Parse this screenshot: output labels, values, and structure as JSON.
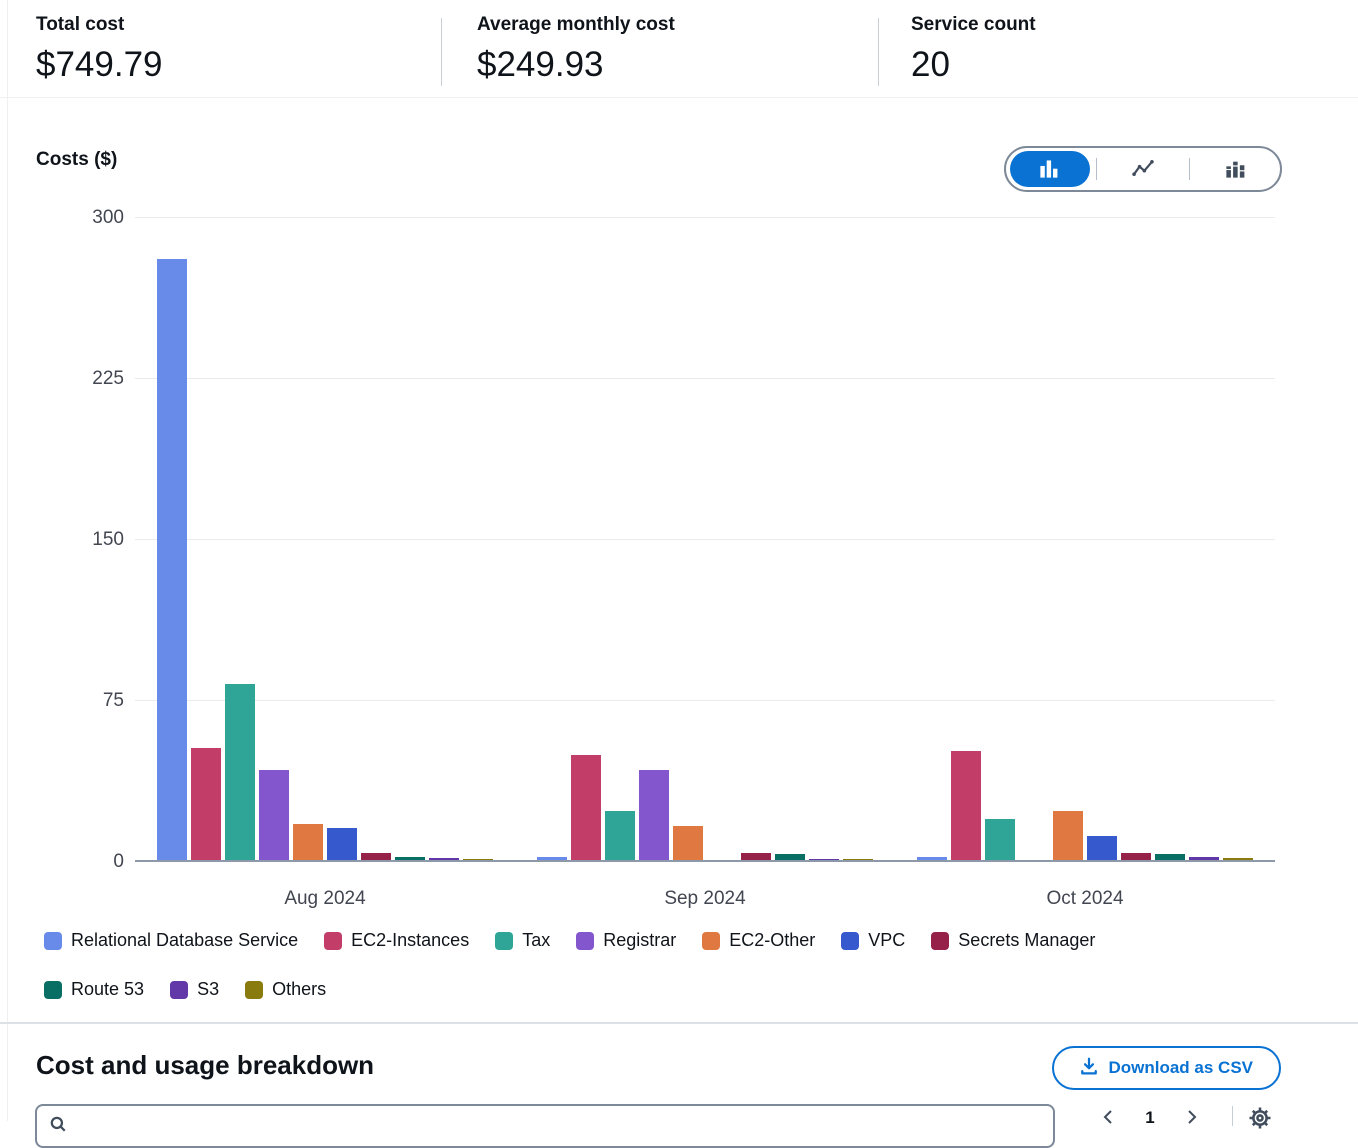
{
  "stats": [
    {
      "label": "Total cost",
      "value": "$749.79"
    },
    {
      "label": "Average monthly cost",
      "value": "$249.93"
    },
    {
      "label": "Service count",
      "value": "20"
    }
  ],
  "chart": {
    "title": "Costs ($)",
    "view_toggles": [
      "bar-chart",
      "line-chart",
      "stacked-bar-chart"
    ],
    "active_toggle": "bar-chart",
    "accent_color": "#0972d3"
  },
  "chart_data": {
    "type": "bar",
    "title": "Costs ($)",
    "ylabel": "Costs ($)",
    "xlabel": "",
    "categories": [
      "Aug 2024",
      "Sep 2024",
      "Oct 2024"
    ],
    "ylim": [
      0,
      300
    ],
    "yticks": [
      0,
      75,
      150,
      225,
      300
    ],
    "grid": true,
    "legend_position": "bottom",
    "legend_row_break": 7,
    "series": [
      {
        "name": "Relational Database Service",
        "color": "#688ae8",
        "values": [
          280,
          1.5,
          1.5
        ]
      },
      {
        "name": "EC2-Instances",
        "color": "#c33d69",
        "values": [
          52,
          49,
          51
        ]
      },
      {
        "name": "Tax",
        "color": "#2ea597",
        "values": [
          82,
          23,
          19
        ]
      },
      {
        "name": "Registrar",
        "color": "#8456ce",
        "values": [
          42,
          42,
          0
        ]
      },
      {
        "name": "EC2-Other",
        "color": "#e07941",
        "values": [
          17,
          16,
          23
        ]
      },
      {
        "name": "VPC",
        "color": "#3759ce",
        "values": [
          15,
          0,
          11
        ]
      },
      {
        "name": "Secrets Manager",
        "color": "#962249",
        "values": [
          3.3,
          3.2,
          3.2
        ]
      },
      {
        "name": "Route 53",
        "color": "#096f64",
        "values": [
          1.6,
          2.8,
          2.6
        ]
      },
      {
        "name": "S3",
        "color": "#6237a7",
        "values": [
          0.8,
          0.5,
          1.2
        ]
      },
      {
        "name": "Others",
        "color": "#8a7b0e",
        "values": [
          0.4,
          0.3,
          1.0
        ]
      }
    ]
  },
  "breakdown": {
    "title": "Cost and usage breakdown",
    "download_label": "Download as CSV"
  },
  "controls": {
    "page": "1"
  }
}
